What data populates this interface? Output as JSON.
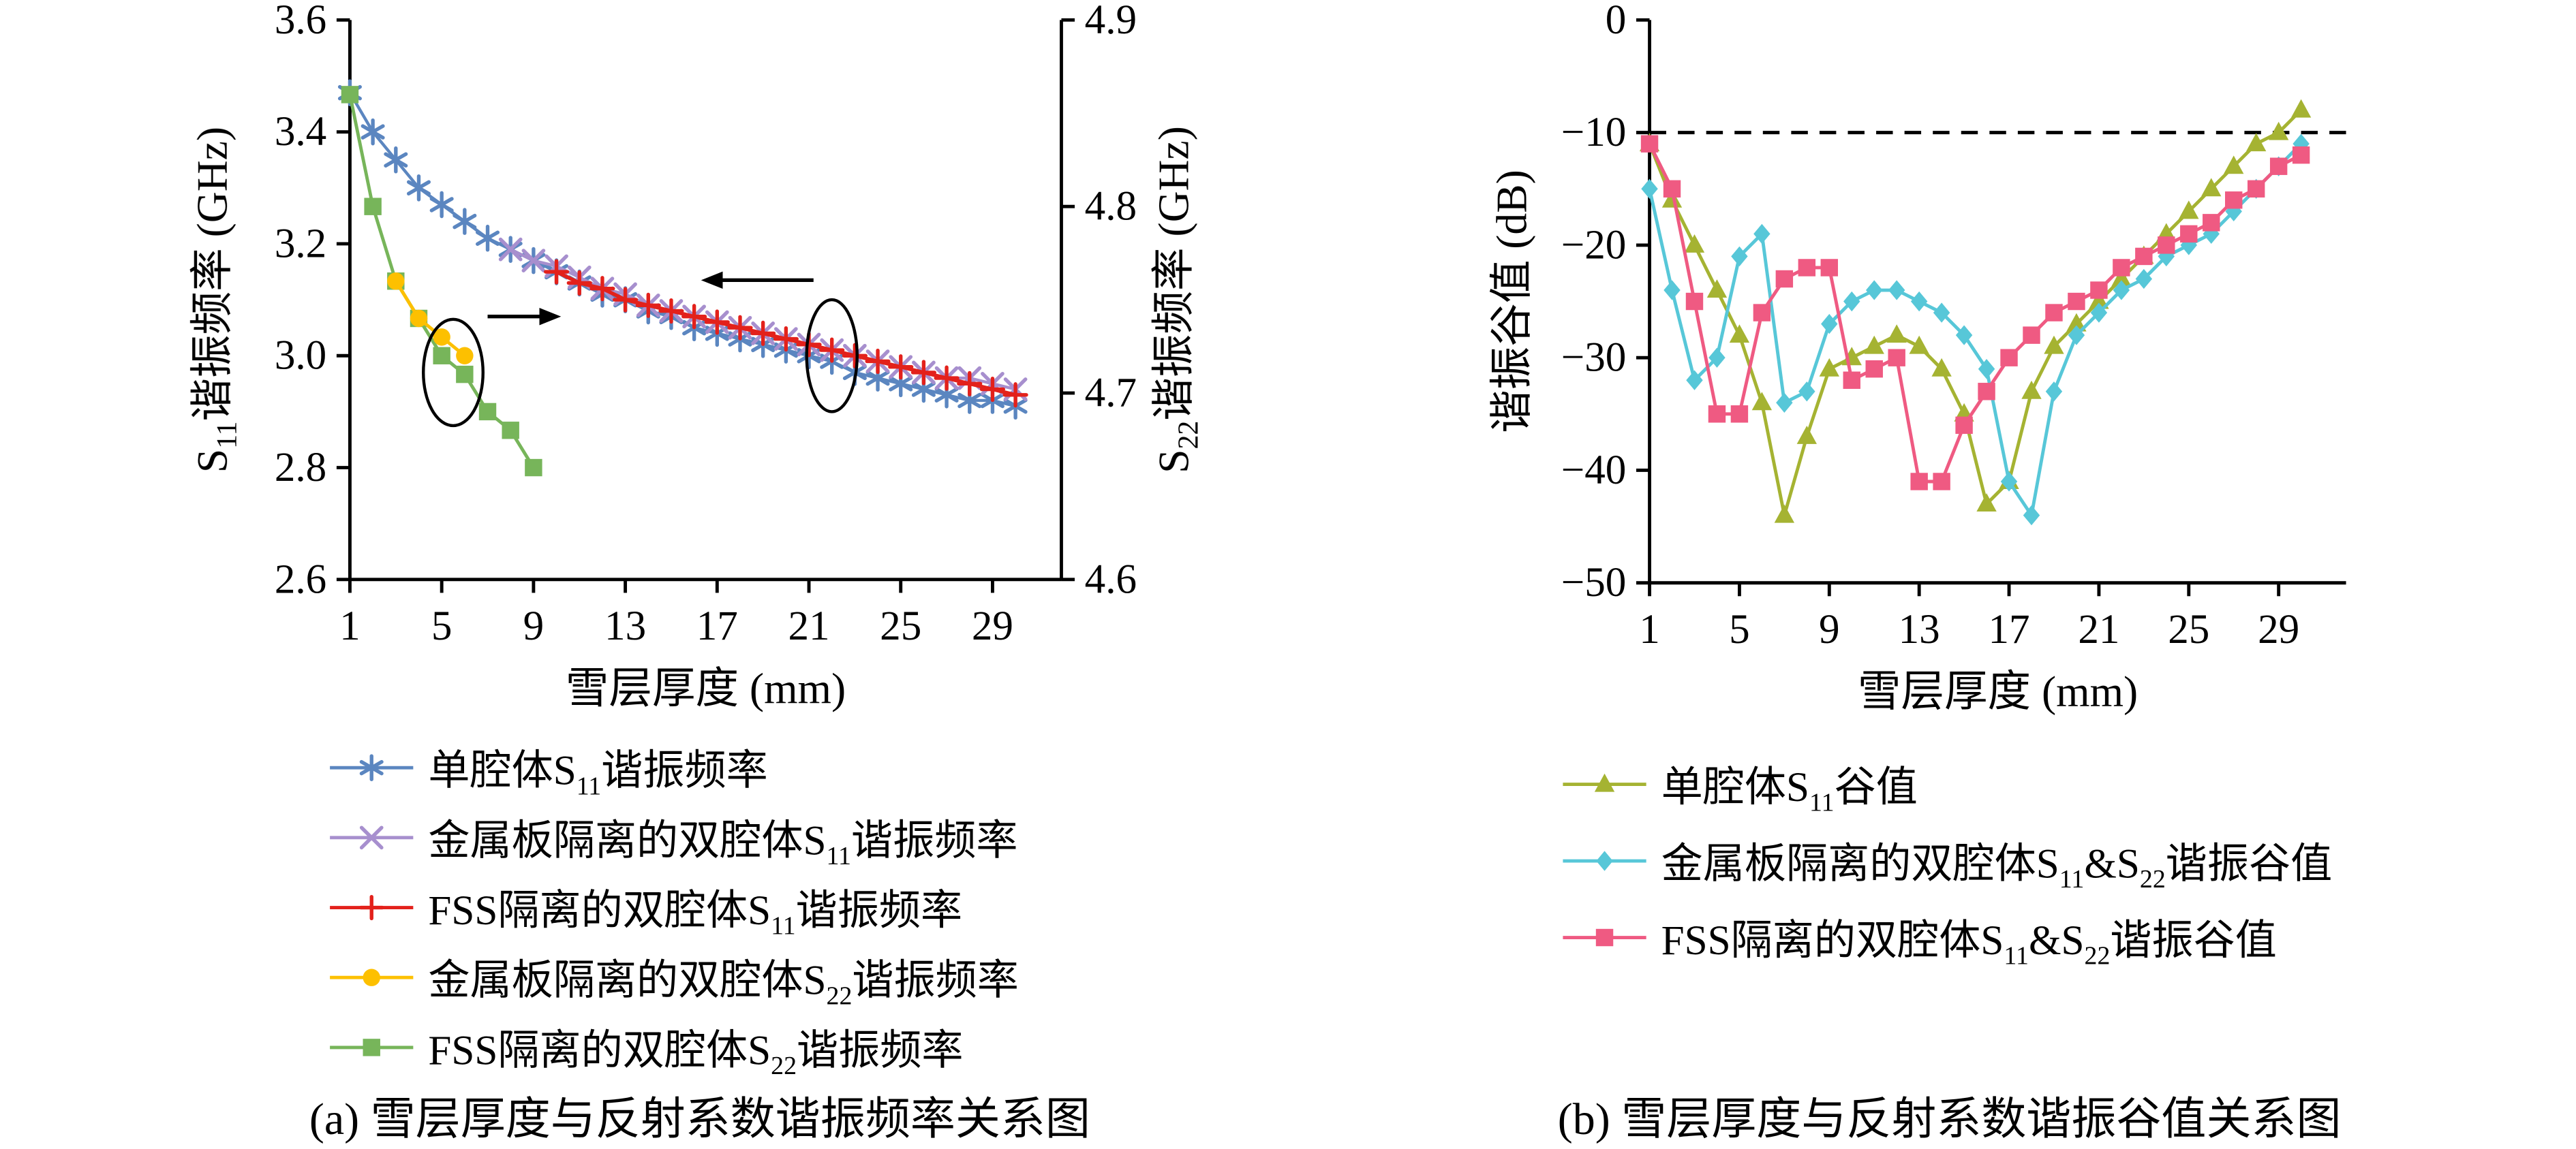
{
  "captions": {
    "a": "(a) 雪层厚度与反射系数谐振频率关系图",
    "b": "(b) 雪层厚度与反射系数谐振谷值关系图"
  },
  "chart_data": [
    {
      "id": "a",
      "type": "line",
      "title": "",
      "xlabel": "雪层厚度 (mm)",
      "ylabel_left": "S[11]谐振频率 (GHz)",
      "ylabel_right": "S[22]谐振频率 (GHz)",
      "xlim": [
        1,
        32
      ],
      "xticks": [
        1,
        5,
        9,
        13,
        17,
        21,
        25,
        29
      ],
      "xtick_labels": [
        "1",
        "5",
        "9",
        "13",
        "17",
        "21",
        "25",
        "29"
      ],
      "ylim_left": [
        2.6,
        3.6
      ],
      "yticks_left": [
        2.6,
        2.8,
        3.0,
        3.2,
        3.4,
        3.6
      ],
      "ytick_labels_left": [
        "2.6",
        "2.8",
        "3.0",
        "3.2",
        "3.4",
        "3.6"
      ],
      "ylim_right": [
        4.6,
        4.9
      ],
      "yticks_right": [
        4.6,
        4.7,
        4.8,
        4.9
      ],
      "ytick_labels_right": [
        "4.6",
        "4.7",
        "4.8",
        "4.9"
      ],
      "grid": false,
      "series": [
        {
          "name": "单腔体S[11]谐振频率",
          "axis": "left",
          "color": "#5b86c0",
          "marker": "asterisk",
          "lw": 1.8,
          "x": [
            1,
            2,
            3,
            4,
            5,
            6,
            7,
            8,
            9,
            10,
            11,
            12,
            13,
            14,
            15,
            16,
            17,
            18,
            19,
            20,
            21,
            22,
            23,
            24,
            25,
            26,
            27,
            28,
            29,
            30
          ],
          "y": [
            3.47,
            3.4,
            3.35,
            3.3,
            3.27,
            3.24,
            3.21,
            3.19,
            3.17,
            3.15,
            3.13,
            3.11,
            3.1,
            3.08,
            3.07,
            3.05,
            3.04,
            3.03,
            3.02,
            3.01,
            3.0,
            2.99,
            2.97,
            2.96,
            2.95,
            2.94,
            2.93,
            2.92,
            2.92,
            2.91
          ]
        },
        {
          "name": "FSS隔离的双腔体S[22]谐振频率",
          "axis": "right",
          "color": "#77b55a",
          "marker": "square",
          "lw": 2,
          "x": [
            1,
            2,
            3,
            4,
            5,
            6,
            7,
            8,
            9
          ],
          "y": [
            4.86,
            4.8,
            4.76,
            4.74,
            4.72,
            4.71,
            4.69,
            4.68,
            4.66
          ]
        },
        {
          "name": "金属板隔离的双腔体S[22]谐振频率",
          "axis": "right",
          "color": "#fdc000",
          "marker": "circle",
          "lw": 2,
          "x": [
            3,
            4,
            5,
            6
          ],
          "y": [
            4.76,
            4.74,
            4.73,
            4.72
          ]
        },
        {
          "name": "金属板隔离的双腔体S[11]谐振频率",
          "axis": "left",
          "color": "#a78fce",
          "marker": "x",
          "lw": 1.8,
          "x": [
            8,
            9,
            10,
            11,
            12,
            13,
            14,
            15,
            16,
            17,
            18,
            19,
            20,
            21,
            22,
            23,
            24,
            25,
            26,
            27,
            28,
            29,
            30
          ],
          "y": [
            3.19,
            3.17,
            3.16,
            3.14,
            3.12,
            3.11,
            3.09,
            3.08,
            3.07,
            3.06,
            3.05,
            3.04,
            3.03,
            3.02,
            3.01,
            3.0,
            2.99,
            2.98,
            2.97,
            2.96,
            2.96,
            2.95,
            2.94
          ]
        },
        {
          "name": "FSS隔离的双腔体S[11]谐振频率",
          "axis": "left",
          "color": "#e3211b",
          "marker": "plus",
          "lw": 2.2,
          "x": [
            10,
            11,
            12,
            13,
            14,
            15,
            16,
            17,
            18,
            19,
            20,
            21,
            22,
            23,
            24,
            25,
            26,
            27,
            28,
            29,
            30
          ],
          "y": [
            3.15,
            3.13,
            3.12,
            3.1,
            3.09,
            3.08,
            3.07,
            3.06,
            3.05,
            3.04,
            3.03,
            3.02,
            3.01,
            3.0,
            2.99,
            2.98,
            2.97,
            2.96,
            2.95,
            2.94,
            2.93
          ]
        }
      ],
      "annotations": [
        {
          "type": "ellipse",
          "cx": 5.5,
          "cy": 2.97,
          "rx": 1.3,
          "ry": 0.095
        },
        {
          "type": "arrow",
          "x1": 7.0,
          "y1": 3.07,
          "x2": 10.2,
          "y2": 3.07
        },
        {
          "type": "ellipse",
          "cx": 22.0,
          "cy": 3.0,
          "rx": 1.1,
          "ry": 0.1
        },
        {
          "type": "arrow",
          "x1": 21.2,
          "y1": 3.135,
          "x2": 16.3,
          "y2": 3.135
        }
      ]
    },
    {
      "id": "b",
      "type": "line",
      "title": "",
      "xlabel": "雪层厚度 (mm)",
      "ylabel_left": "谐振谷值 (dB)",
      "xlim": [
        1,
        32
      ],
      "xticks": [
        1,
        5,
        9,
        13,
        17,
        21,
        25,
        29
      ],
      "xtick_labels": [
        "1",
        "5",
        "9",
        "13",
        "17",
        "21",
        "25",
        "29"
      ],
      "ylim_left": [
        -50,
        0
      ],
      "yticks_left": [
        -50,
        -40,
        -30,
        -20,
        -10,
        0
      ],
      "ytick_labels_left": [
        "−50",
        "−40",
        "−30",
        "−20",
        "−10",
        "0"
      ],
      "grid": false,
      "refline": {
        "y": -10,
        "color": "#000000",
        "dash": "10 7"
      },
      "series": [
        {
          "name": "单腔体S[11]谷值",
          "axis": "left",
          "color": "#a5b332",
          "marker": "triangle",
          "lw": 2,
          "x": [
            1,
            2,
            3,
            4,
            5,
            6,
            7,
            8,
            9,
            10,
            11,
            12,
            13,
            14,
            15,
            16,
            17,
            18,
            19,
            20,
            21,
            22,
            23,
            24,
            25,
            26,
            27,
            28,
            29,
            30
          ],
          "y": [
            -11,
            -16,
            -20,
            -24,
            -28,
            -34,
            -44,
            -37,
            -31,
            -30,
            -29,
            -28,
            -29,
            -31,
            -35,
            -43,
            -41,
            -33,
            -29,
            -27,
            -25,
            -23,
            -21,
            -19,
            -17,
            -15,
            -13,
            -11,
            -10,
            -8
          ]
        },
        {
          "name": "金属板隔离的双腔体S[11]&S[22]谐振谷值",
          "axis": "left",
          "color": "#57c7d8",
          "marker": "diamond",
          "lw": 2,
          "x": [
            1,
            2,
            3,
            4,
            5,
            6,
            7,
            8,
            9,
            10,
            11,
            12,
            13,
            14,
            15,
            16,
            17,
            18,
            19,
            20,
            21,
            22,
            23,
            24,
            25,
            26,
            27,
            28,
            29,
            30
          ],
          "y": [
            -15,
            -24,
            -32,
            -30,
            -21,
            -19,
            -34,
            -33,
            -27,
            -25,
            -24,
            -24,
            -25,
            -26,
            -28,
            -31,
            -41,
            -44,
            -33,
            -28,
            -26,
            -24,
            -23,
            -21,
            -20,
            -19,
            -17,
            -15,
            -13,
            -11
          ]
        },
        {
          "name": "FSS隔离的双腔体S[11]&S[22]谐振谷值",
          "axis": "left",
          "color": "#ef5a82",
          "marker": "square",
          "lw": 2,
          "x": [
            1,
            2,
            3,
            4,
            5,
            6,
            7,
            8,
            9,
            10,
            11,
            12,
            13,
            14,
            15,
            16,
            17,
            18,
            19,
            20,
            21,
            22,
            23,
            24,
            25,
            26,
            27,
            28,
            29,
            30
          ],
          "y": [
            -11,
            -15,
            -25,
            -35,
            -35,
            -26,
            -23,
            -22,
            -22,
            -32,
            -31,
            -30,
            -41,
            -41,
            -36,
            -33,
            -30,
            -28,
            -26,
            -25,
            -24,
            -22,
            -21,
            -20,
            -19,
            -18,
            -16,
            -15,
            -13,
            -12
          ]
        }
      ]
    }
  ],
  "legends": {
    "a": [
      {
        "marker": "asterisk",
        "color": "#5b86c0",
        "label": "单腔体S[11]谐振频率"
      },
      {
        "marker": "x",
        "color": "#a78fce",
        "label": "金属板隔离的双腔体S[11]谐振频率"
      },
      {
        "marker": "plus",
        "color": "#e3211b",
        "label": "FSS隔离的双腔体S[11]谐振频率"
      },
      {
        "marker": "circle",
        "color": "#fdc000",
        "label": "金属板隔离的双腔体S[22]谐振频率"
      },
      {
        "marker": "square",
        "color": "#77b55a",
        "label": "FSS隔离的双腔体S[22]谐振频率"
      }
    ],
    "b": [
      {
        "marker": "triangle",
        "color": "#a5b332",
        "label": "单腔体S[11]谷值"
      },
      {
        "marker": "diamond",
        "color": "#57c7d8",
        "label": "金属板隔离的双腔体S[11]&S[22]谐振谷值"
      },
      {
        "marker": "square",
        "color": "#ef5a82",
        "label": "FSS隔离的双腔体S[11]&S[22]谐振谷值"
      }
    ]
  }
}
